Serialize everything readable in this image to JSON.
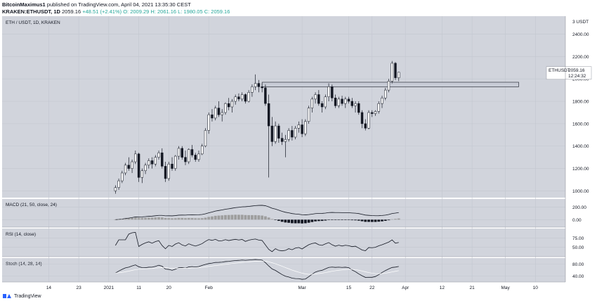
{
  "header": {
    "author": "BitcoinMaximus1",
    "published_text": "published on TradingView.com, April 04, 2021 13:35:30 CEST",
    "symbol": "KRAKEN:ETHUSDT, 1D",
    "last": "2059.16",
    "change": "+48.51 (+2.41%)",
    "ohlc": "O: 2009.29 H: 2061.16 L: 1980.05 C: 2059.16"
  },
  "chart_data": {
    "type": "candlestick",
    "title": "ETH / USDT, 1D, KRAKEN",
    "yticks": [
      "2400.00",
      "2200.00",
      "2000.00",
      "1800.00",
      "1600.00",
      "1400.00",
      "1200.00",
      "1000.00"
    ],
    "ytick_values": [
      2400,
      2200,
      2000,
      1800,
      1600,
      1400,
      1200,
      1000
    ],
    "y_top_label": "3 USDT",
    "ylim": [
      940,
      2560
    ],
    "xticks": [
      {
        "label": "14",
        "x": 14
      },
      {
        "label": "23",
        "x": 23
      },
      {
        "label": "2021",
        "x": 32
      },
      {
        "label": "11",
        "x": 41
      },
      {
        "label": "20",
        "x": 50
      },
      {
        "label": "Feb",
        "x": 62
      },
      {
        "label": "Mar",
        "x": 90
      },
      {
        "label": "15",
        "x": 104
      },
      {
        "label": "22",
        "x": 111
      },
      {
        "label": "Apr",
        "x": 121
      },
      {
        "label": "12",
        "x": 132
      },
      {
        "label": "21",
        "x": 141
      },
      {
        "label": "May",
        "x": 151
      },
      {
        "label": "10",
        "x": 160
      }
    ],
    "xlim": [
      0,
      169
    ],
    "candles_ohlc": [
      [
        34,
        1000,
        1050,
        975,
        1030
      ],
      [
        35,
        1030,
        1110,
        1010,
        1090
      ],
      [
        36,
        1090,
        1180,
        1070,
        1160
      ],
      [
        37,
        1160,
        1250,
        1140,
        1230
      ],
      [
        38,
        1230,
        1300,
        1180,
        1200
      ],
      [
        39,
        1200,
        1280,
        1160,
        1260
      ],
      [
        40,
        1260,
        1360,
        1240,
        1330
      ],
      [
        41,
        1330,
        1340,
        1080,
        1120
      ],
      [
        42,
        1120,
        1200,
        1070,
        1180
      ],
      [
        43,
        1180,
        1250,
        1150,
        1230
      ],
      [
        44,
        1230,
        1290,
        1200,
        1270
      ],
      [
        45,
        1270,
        1300,
        1200,
        1240
      ],
      [
        46,
        1240,
        1320,
        1220,
        1300
      ],
      [
        47,
        1300,
        1360,
        1280,
        1340
      ],
      [
        48,
        1340,
        1380,
        1200,
        1220
      ],
      [
        49,
        1220,
        1260,
        1080,
        1110
      ],
      [
        50,
        1110,
        1260,
        1090,
        1240
      ],
      [
        51,
        1240,
        1300,
        1180,
        1200
      ],
      [
        52,
        1200,
        1320,
        1180,
        1310
      ],
      [
        53,
        1310,
        1400,
        1280,
        1380
      ],
      [
        54,
        1380,
        1400,
        1280,
        1300
      ],
      [
        55,
        1300,
        1360,
        1230,
        1260
      ],
      [
        56,
        1260,
        1380,
        1240,
        1370
      ],
      [
        57,
        1370,
        1410,
        1300,
        1320
      ],
      [
        58,
        1320,
        1340,
        1260,
        1280
      ],
      [
        59,
        1280,
        1360,
        1260,
        1330
      ],
      [
        60,
        1330,
        1420,
        1320,
        1400
      ],
      [
        61,
        1400,
        1560,
        1390,
        1540
      ],
      [
        62,
        1540,
        1700,
        1510,
        1680
      ],
      [
        63,
        1680,
        1730,
        1620,
        1650
      ],
      [
        64,
        1650,
        1760,
        1630,
        1740
      ],
      [
        65,
        1740,
        1800,
        1660,
        1680
      ],
      [
        66,
        1680,
        1730,
        1620,
        1700
      ],
      [
        67,
        1700,
        1790,
        1680,
        1780
      ],
      [
        68,
        1780,
        1830,
        1720,
        1750
      ],
      [
        69,
        1750,
        1820,
        1700,
        1800
      ],
      [
        70,
        1800,
        1860,
        1770,
        1840
      ],
      [
        71,
        1840,
        1870,
        1800,
        1820
      ],
      [
        72,
        1820,
        1880,
        1800,
        1860
      ],
      [
        73,
        1860,
        1870,
        1780,
        1800
      ],
      [
        74,
        1800,
        1900,
        1790,
        1880
      ],
      [
        75,
        1880,
        1950,
        1840,
        1930
      ],
      [
        76,
        1930,
        2040,
        1900,
        1960
      ],
      [
        77,
        1960,
        1990,
        1880,
        1930
      ],
      [
        78,
        1930,
        1960,
        1880,
        1920
      ],
      [
        79,
        1920,
        1950,
        1760,
        1780
      ],
      [
        80,
        1780,
        1860,
        1120,
        1580
      ],
      [
        81,
        1580,
        1660,
        1400,
        1440
      ],
      [
        82,
        1440,
        1620,
        1420,
        1580
      ],
      [
        83,
        1580,
        1600,
        1430,
        1470
      ],
      [
        84,
        1470,
        1520,
        1410,
        1440
      ],
      [
        85,
        1440,
        1500,
        1300,
        1460
      ],
      [
        86,
        1460,
        1560,
        1440,
        1540
      ],
      [
        87,
        1540,
        1580,
        1450,
        1480
      ],
      [
        88,
        1480,
        1580,
        1460,
        1560
      ],
      [
        89,
        1560,
        1620,
        1520,
        1590
      ],
      [
        90,
        1590,
        1640,
        1480,
        1510
      ],
      [
        91,
        1510,
        1640,
        1490,
        1620
      ],
      [
        92,
        1620,
        1760,
        1600,
        1740
      ],
      [
        93,
        1740,
        1840,
        1700,
        1820
      ],
      [
        94,
        1820,
        1880,
        1780,
        1860
      ],
      [
        95,
        1860,
        1900,
        1760,
        1780
      ],
      [
        96,
        1780,
        1800,
        1700,
        1750
      ],
      [
        97,
        1750,
        1860,
        1730,
        1840
      ],
      [
        98,
        1840,
        1960,
        1800,
        1930
      ],
      [
        99,
        1930,
        1950,
        1800,
        1830
      ],
      [
        100,
        1830,
        1860,
        1740,
        1760
      ],
      [
        101,
        1760,
        1840,
        1740,
        1820
      ],
      [
        102,
        1820,
        1850,
        1760,
        1780
      ],
      [
        103,
        1780,
        1840,
        1740,
        1820
      ],
      [
        104,
        1820,
        1840,
        1780,
        1800
      ],
      [
        105,
        1800,
        1830,
        1740,
        1760
      ],
      [
        106,
        1760,
        1800,
        1700,
        1780
      ],
      [
        107,
        1780,
        1800,
        1680,
        1700
      ],
      [
        108,
        1700,
        1720,
        1560,
        1600
      ],
      [
        109,
        1600,
        1640,
        1540,
        1560
      ],
      [
        110,
        1560,
        1720,
        1550,
        1700
      ],
      [
        111,
        1700,
        1720,
        1660,
        1690
      ],
      [
        112,
        1690,
        1720,
        1670,
        1710
      ],
      [
        113,
        1710,
        1800,
        1690,
        1780
      ],
      [
        114,
        1780,
        1850,
        1740,
        1830
      ],
      [
        115,
        1830,
        1920,
        1810,
        1900
      ],
      [
        116,
        1900,
        2000,
        1880,
        1980
      ],
      [
        117,
        1980,
        2160,
        1960,
        2140
      ],
      [
        118,
        2140,
        2150,
        1990,
        2010
      ],
      [
        119,
        2009.29,
        2061.16,
        1980.05,
        2059.16
      ]
    ],
    "resistance_zone": {
      "from": 1930,
      "to": 1970
    },
    "price_label": {
      "symbol": "ETHUSDT",
      "price": "2059.16",
      "countdown": "12:24:32",
      "color": "#ffffff"
    },
    "indicators": {
      "macd": {
        "label": "MACD (21, 50, close, 24)",
        "yticks": [
          "200.00",
          "0.00"
        ],
        "ytick_values": [
          200,
          0
        ],
        "ylim": [
          -120,
          330
        ]
      },
      "rsi": {
        "label": "RSI (14, close)",
        "yticks": [
          "75.00",
          "50.00"
        ],
        "ytick_values": [
          75,
          50
        ],
        "ylim": [
          25,
          100
        ]
      },
      "stoch": {
        "label": "Stoch (14, 28, 14)",
        "yticks": [
          "80.00",
          "40.00"
        ],
        "ytick_values": [
          80,
          40
        ],
        "ylim": [
          20,
          100
        ]
      }
    }
  },
  "footer": {
    "brand": "TradingView"
  }
}
